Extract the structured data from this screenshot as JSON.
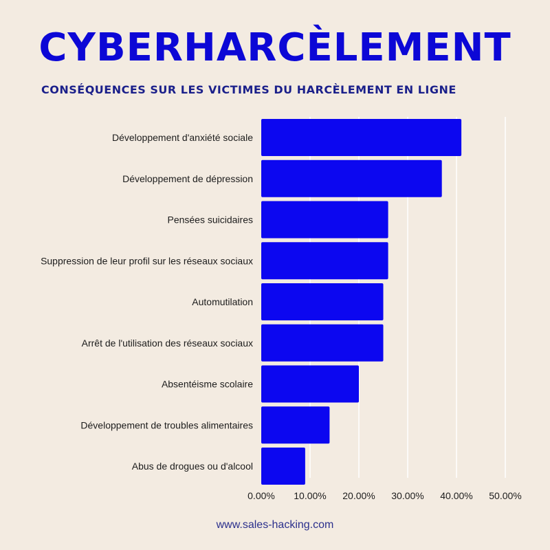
{
  "header": {
    "title": "CYBERHARCÈLEMENT",
    "subtitle": "CONSÉQUENCES SUR LES VICTIMES DU HARCÈLEMENT EN LIGNE"
  },
  "footer": {
    "source": "www.sales-hacking.com"
  },
  "colors": {
    "bar": "#0c07f0",
    "background": "#f3ebe1",
    "title": "#0c07d6"
  },
  "chart_data": {
    "type": "bar",
    "orientation": "horizontal",
    "categories": [
      "Développement d'anxiété sociale",
      "Développement de dépression",
      "Pensées suicidaires",
      "Suppression de leur profil sur les réseaux sociaux",
      "Automutilation",
      "Arrêt de l'utilisation des réseaux sociaux",
      "Absentéisme scolaire",
      "Développement de troubles alimentaires",
      "Abus de drogues ou d'alcool"
    ],
    "values": [
      41,
      37,
      26,
      26,
      25,
      25,
      20,
      14,
      9
    ],
    "xlim": [
      0,
      50
    ],
    "xticks": [
      0,
      10,
      20,
      30,
      40,
      50
    ],
    "xtick_labels": [
      "0.00%",
      "10.00%",
      "20.00%",
      "30.00%",
      "40.00%",
      "50.00%"
    ],
    "grid": true
  }
}
